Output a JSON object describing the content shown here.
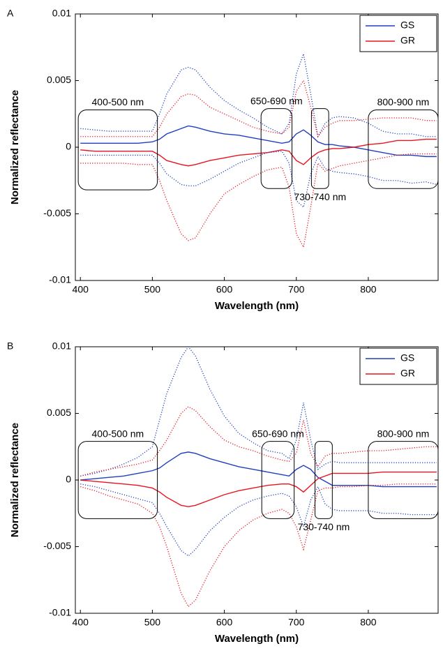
{
  "chart_data": [
    {
      "type": "line",
      "panel": "A",
      "xlabel": "Wavelength (nm)",
      "ylabel": "Normalized reflectance",
      "xlim": [
        393,
        897
      ],
      "xticks": [
        400,
        500,
        600,
        700,
        800
      ],
      "ylim": [
        -0.01,
        0.01
      ],
      "yticks": [
        -0.01,
        -0.005,
        0,
        0.005,
        0.01
      ],
      "legend": "upper right",
      "x": [
        400,
        420,
        440,
        460,
        480,
        500,
        510,
        520,
        540,
        550,
        560,
        580,
        600,
        620,
        640,
        660,
        680,
        690,
        700,
        710,
        720,
        730,
        740,
        750,
        760,
        780,
        800,
        820,
        840,
        860,
        880,
        895
      ],
      "series": [
        {
          "name": "GS",
          "color": "#1f3fbf",
          "style": "solid",
          "values": [
            0.0003,
            0.0003,
            0.0003,
            0.0003,
            0.0003,
            0.0004,
            0.0006,
            0.001,
            0.0014,
            0.0016,
            0.0015,
            0.0012,
            0.001,
            0.0009,
            0.0007,
            0.0005,
            0.0003,
            0.0004,
            0.001,
            0.0013,
            0.0009,
            0.0004,
            0.0002,
            0.0002,
            0.0001,
            0,
            -0.0002,
            -0.0004,
            -0.0006,
            -0.0006,
            -0.0007,
            -0.0007
          ]
        },
        {
          "name": "GR",
          "color": "#e8141e",
          "style": "solid",
          "values": [
            -0.0002,
            -0.0003,
            -0.0003,
            -0.0003,
            -0.0003,
            -0.0003,
            -0.0006,
            -0.001,
            -0.0013,
            -0.0014,
            -0.0013,
            -0.001,
            -0.0008,
            -0.0006,
            -0.0005,
            -0.0004,
            -0.0002,
            -0.0003,
            -0.001,
            -0.0013,
            -0.0008,
            -0.0004,
            -0.0002,
            -0.0001,
            -0.0001,
            0,
            0.0002,
            0.0003,
            0.0005,
            0.0005,
            0.0006,
            0.0006
          ]
        },
        {
          "color": "#1f3fbf",
          "style": "dotted",
          "values": [
            0.0014,
            0.0013,
            0.0012,
            0.0012,
            0.0012,
            0.0012,
            0.0025,
            0.004,
            0.0058,
            0.006,
            0.0058,
            0.0045,
            0.0035,
            0.0028,
            0.0022,
            0.0015,
            0.001,
            0.0018,
            0.0055,
            0.007,
            0.004,
            0.0008,
            0.0018,
            0.0022,
            0.0023,
            0.0022,
            0.0018,
            0.0012,
            0.001,
            0.001,
            0.0008,
            0.0008
          ]
        },
        {
          "color": "#1f3fbf",
          "style": "dotted",
          "values": [
            -0.0006,
            -0.0006,
            -0.0006,
            -0.0006,
            -0.0006,
            -0.0006,
            -0.0012,
            -0.002,
            -0.0028,
            -0.0029,
            -0.0029,
            -0.0024,
            -0.0018,
            -0.0012,
            -0.0008,
            -0.0004,
            -0.0003,
            -0.0012,
            -0.004,
            -0.0045,
            -0.002,
            -0.0007,
            -0.0016,
            -0.0018,
            -0.0019,
            -0.002,
            -0.0022,
            -0.0025,
            -0.0025,
            -0.0027,
            -0.0026,
            -0.0028
          ]
        },
        {
          "color": "#e8141e",
          "style": "dotted",
          "values": [
            0.0008,
            0.0008,
            0.0008,
            0.0008,
            0.0008,
            0.0008,
            0.0015,
            0.0025,
            0.0038,
            0.004,
            0.0039,
            0.003,
            0.0025,
            0.002,
            0.0015,
            0.0012,
            0.001,
            0.0015,
            0.0042,
            0.005,
            0.003,
            0.0008,
            0.0015,
            0.0018,
            0.002,
            0.002,
            0.0021,
            0.0022,
            0.0022,
            0.0022,
            0.002,
            0.002
          ]
        },
        {
          "color": "#e8141e",
          "style": "dotted",
          "values": [
            -0.0012,
            -0.0012,
            -0.0012,
            -0.0012,
            -0.0013,
            -0.0013,
            -0.0025,
            -0.004,
            -0.0065,
            -0.007,
            -0.0068,
            -0.005,
            -0.0035,
            -0.0028,
            -0.0022,
            -0.0017,
            -0.0015,
            -0.003,
            -0.0065,
            -0.0075,
            -0.0045,
            -0.0012,
            -0.0018,
            -0.0016,
            -0.0014,
            -0.0012,
            -0.001,
            -0.0008,
            -0.0006,
            -0.0005,
            -0.0005,
            -0.0005
          ]
        }
      ],
      "annotations": [
        {
          "text": "400-500 nm",
          "box_x": [
            397,
            507
          ],
          "box_y": [
            -0.0032,
            0.0028
          ],
          "position": "above"
        },
        {
          "text": "650-690 nm",
          "box_x": [
            651,
            694
          ],
          "box_y": [
            -0.0031,
            0.0029
          ],
          "position": "above"
        },
        {
          "text": "730-740 nm",
          "box_x": [
            721,
            745
          ],
          "box_y": [
            -0.0031,
            0.0029
          ],
          "position": "below"
        },
        {
          "text": "800-900 nm",
          "box_x": [
            800,
            897
          ],
          "box_y": [
            -0.0031,
            0.0028
          ],
          "position": "above"
        }
      ]
    },
    {
      "type": "line",
      "panel": "B",
      "xlabel": "Wavelength (nm)",
      "ylabel": "Normalized reflectance",
      "xlim": [
        393,
        897
      ],
      "xticks": [
        400,
        500,
        600,
        700,
        800
      ],
      "ylim": [
        -0.01,
        0.01
      ],
      "yticks": [
        -0.01,
        -0.005,
        0,
        0.005,
        0.01
      ],
      "legend": "upper right",
      "x": [
        400,
        420,
        440,
        460,
        480,
        500,
        510,
        520,
        540,
        550,
        560,
        580,
        600,
        620,
        640,
        660,
        680,
        690,
        700,
        710,
        720,
        730,
        740,
        750,
        760,
        780,
        800,
        820,
        840,
        860,
        880,
        895
      ],
      "series": [
        {
          "name": "GS",
          "color": "#1f3fbf",
          "style": "solid",
          "values": [
            0,
            0.0001,
            0.0002,
            0.0003,
            0.0005,
            0.0007,
            0.0009,
            0.0013,
            0.002,
            0.0021,
            0.002,
            0.0016,
            0.0013,
            0.001,
            0.0008,
            0.0006,
            0.0004,
            0.0003,
            0.0008,
            0.0011,
            0.0008,
            0.0002,
            -0.0001,
            -0.0004,
            -0.0004,
            -0.0004,
            -0.0004,
            -0.0005,
            -0.0005,
            -0.0005,
            -0.0005,
            -0.0005
          ]
        },
        {
          "name": "GR",
          "color": "#e8141e",
          "style": "solid",
          "values": [
            0,
            -0.0001,
            -0.0002,
            -0.0003,
            -0.0004,
            -0.0006,
            -0.0009,
            -0.0013,
            -0.0019,
            -0.002,
            -0.0019,
            -0.0015,
            -0.0011,
            -0.0008,
            -0.0006,
            -0.0004,
            -0.0003,
            -0.0003,
            -0.0005,
            -0.0009,
            -0.0004,
            0.0001,
            0.0003,
            0.0005,
            0.0005,
            0.0005,
            0.0005,
            0.0006,
            0.0006,
            0.0006,
            0.0006,
            0.0006
          ]
        },
        {
          "color": "#1f3fbf",
          "style": "dotted",
          "values": [
            0.0003,
            0.0005,
            0.0008,
            0.0012,
            0.0017,
            0.0025,
            0.0045,
            0.0065,
            0.0092,
            0.01,
            0.0093,
            0.0068,
            0.0048,
            0.0035,
            0.0028,
            0.0022,
            0.002,
            0.0016,
            0.003,
            0.0058,
            0.003,
            0.0008,
            0.0012,
            0.0014,
            0.0013,
            0.0013,
            0.0013,
            0.0013,
            0.0013,
            0.0013,
            0.0013,
            0.0013
          ]
        },
        {
          "color": "#1f3fbf",
          "style": "dotted",
          "values": [
            -0.0003,
            -0.0005,
            -0.0008,
            -0.0011,
            -0.0014,
            -0.0017,
            -0.0025,
            -0.0035,
            -0.0053,
            -0.0057,
            -0.0052,
            -0.0038,
            -0.0028,
            -0.002,
            -0.0015,
            -0.0012,
            -0.001,
            -0.0012,
            -0.002,
            -0.0035,
            -0.0015,
            -0.0005,
            -0.0018,
            -0.0022,
            -0.0023,
            -0.0023,
            -0.0023,
            -0.0025,
            -0.0025,
            -0.0026,
            -0.0026,
            -0.0026
          ]
        },
        {
          "color": "#e8141e",
          "style": "dotted",
          "values": [
            0.0003,
            0.0006,
            0.0008,
            0.001,
            0.0012,
            0.0015,
            0.0022,
            0.003,
            0.005,
            0.0055,
            0.0052,
            0.004,
            0.003,
            0.0025,
            0.0022,
            0.0018,
            0.0015,
            0.0014,
            0.002,
            0.0045,
            0.002,
            0.001,
            0.0018,
            0.002,
            0.002,
            0.0021,
            0.0022,
            0.0022,
            0.0023,
            0.0024,
            0.0025,
            0.0025
          ]
        },
        {
          "color": "#e8141e",
          "style": "dotted",
          "values": [
            -0.0005,
            -0.0008,
            -0.0012,
            -0.0015,
            -0.0018,
            -0.0025,
            -0.0035,
            -0.005,
            -0.0085,
            -0.0095,
            -0.009,
            -0.0068,
            -0.005,
            -0.0038,
            -0.003,
            -0.0025,
            -0.0022,
            -0.0025,
            -0.0035,
            -0.0052,
            -0.003,
            -0.0008,
            -0.0006,
            -0.0006,
            -0.0005,
            -0.0005,
            -0.0004,
            -0.0004,
            -0.0003,
            -0.0003,
            -0.0003,
            -0.0003
          ]
        }
      ],
      "annotations": [
        {
          "text": "400-500 nm",
          "box_x": [
            397,
            507
          ],
          "box_y": [
            -0.0029,
            0.0029
          ],
          "position": "above"
        },
        {
          "text": "650-690 nm",
          "box_x": [
            652,
            697
          ],
          "box_y": [
            -0.0029,
            0.0029
          ],
          "position": "above"
        },
        {
          "text": "730-740 nm",
          "box_x": [
            726,
            750
          ],
          "box_y": [
            -0.0029,
            0.0029
          ],
          "position": "below"
        },
        {
          "text": "800-900 nm",
          "box_x": [
            800,
            897
          ],
          "box_y": [
            -0.0029,
            0.0029
          ],
          "position": "above"
        }
      ]
    }
  ]
}
